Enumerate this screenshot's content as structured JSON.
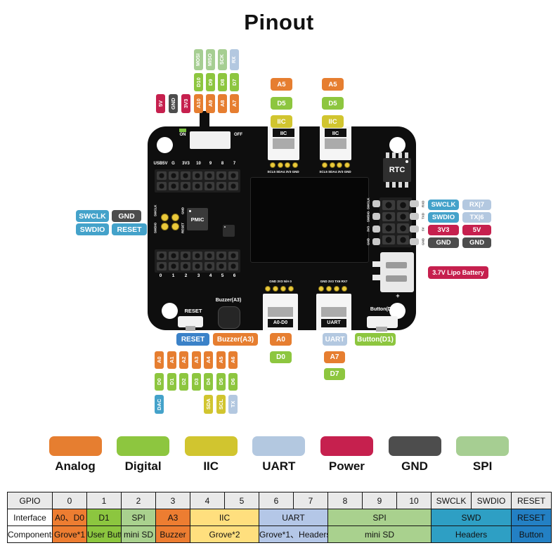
{
  "title": "Pinout",
  "colors": {
    "analog": "#E67E30",
    "digital": "#8DC63F",
    "iic": "#D1C52F",
    "uart": "#B3C8E0",
    "power": "#C6204E",
    "gnd": "#4D4D4D",
    "spi": "#A6CE92",
    "swd": "#44A2CA",
    "reset": "#3B82C8",
    "tbl_orange": "#ED7D31",
    "tbl_green": "#8CC63F",
    "tbl_lgreen": "#A9D18E",
    "tbl_yellow": "#FFDF7E",
    "tbl_blue": "#B4C7E7",
    "tbl_teal": "#2E9FC4",
    "tbl_reset": "#2380C4",
    "tbl_gray": "#E9E9E9"
  },
  "pins": {
    "top_spi_row": [
      {
        "t": "MOSI",
        "c": "spi"
      },
      {
        "t": "MISO",
        "c": "spi"
      },
      {
        "t": "SCK",
        "c": "spi"
      },
      {
        "t": "RX",
        "c": "uart"
      }
    ],
    "top_d_row": [
      {
        "t": "D10",
        "c": "digital"
      },
      {
        "t": "D9",
        "c": "digital"
      },
      {
        "t": "D8",
        "c": "digital"
      },
      {
        "t": "D7",
        "c": "digital"
      }
    ],
    "top_a_row": [
      {
        "t": "5V",
        "c": "power"
      },
      {
        "t": "GND",
        "c": "gnd"
      },
      {
        "t": "3V3",
        "c": "power"
      },
      {
        "t": "A10",
        "c": "analog"
      },
      {
        "t": "A9",
        "c": "analog"
      },
      {
        "t": "A8",
        "c": "analog"
      },
      {
        "t": "A7",
        "c": "analog"
      }
    ],
    "grove_iic_left": [
      {
        "t": "A5",
        "c": "analog"
      },
      {
        "t": "D5",
        "c": "digital"
      },
      {
        "t": "IIC",
        "c": "iic"
      }
    ],
    "grove_iic_right": [
      {
        "t": "A5",
        "c": "analog"
      },
      {
        "t": "D5",
        "c": "digital"
      },
      {
        "t": "IIC",
        "c": "iic"
      }
    ],
    "left_swd": [
      {
        "t": "SWCLK",
        "c": "swd"
      },
      {
        "t": "GND",
        "c": "gnd"
      },
      {
        "t": "SWDIO",
        "c": "swd"
      },
      {
        "t": "RESET",
        "c": "swd"
      }
    ],
    "right_inner": [
      {
        "t": "SWCLK",
        "c": "swd"
      },
      {
        "t": "SWDIO",
        "c": "swd"
      },
      {
        "t": "3V3",
        "c": "power"
      },
      {
        "t": "GND",
        "c": "gnd"
      }
    ],
    "right_outer": [
      {
        "t": "RX|7",
        "c": "uart"
      },
      {
        "t": "TX|6",
        "c": "uart"
      },
      {
        "t": "5V",
        "c": "power"
      },
      {
        "t": "GND",
        "c": "gnd"
      }
    ],
    "battery": [
      {
        "t": "3.7V Lipo Battery",
        "c": "power"
      }
    ],
    "bottom_row": [
      {
        "t": "RESET",
        "c": "reset"
      },
      {
        "t": "Buzzer(A3)",
        "c": "analog"
      },
      {
        "t": "A0",
        "c": "analog"
      },
      {
        "t": "UART",
        "c": "uart"
      },
      {
        "t": "Button(D1)",
        "c": "digital"
      }
    ],
    "below_a0": [
      {
        "t": "D0",
        "c": "digital"
      }
    ],
    "below_uart": [
      {
        "t": "A7",
        "c": "analog"
      },
      {
        "t": "D7",
        "c": "digital"
      }
    ],
    "bl_a": [
      {
        "t": "A0",
        "c": "analog"
      },
      {
        "t": "A1",
        "c": "analog"
      },
      {
        "t": "A2",
        "c": "analog"
      },
      {
        "t": "A3",
        "c": "analog"
      },
      {
        "t": "A4",
        "c": "analog"
      },
      {
        "t": "A5",
        "c": "analog"
      },
      {
        "t": "A6",
        "c": "analog"
      }
    ],
    "bl_d": [
      {
        "t": "D0",
        "c": "digital"
      },
      {
        "t": "D1",
        "c": "digital"
      },
      {
        "t": "D2",
        "c": "digital"
      },
      {
        "t": "D3",
        "c": "digital"
      },
      {
        "t": "D4",
        "c": "digital"
      },
      {
        "t": "D5",
        "c": "digital"
      },
      {
        "t": "D6",
        "c": "digital"
      }
    ],
    "bl_extra": [
      {
        "t": "DAC",
        "c": "swd"
      },
      {
        "t": "SDA",
        "c": "iic"
      },
      {
        "t": "SCL",
        "c": "iic"
      },
      {
        "t": "TX",
        "c": "uart"
      }
    ]
  },
  "board": {
    "on_label": "ON",
    "off_label": "OFF",
    "top_header_silk": [
      "USB5V",
      "G",
      "3V3",
      "10",
      "9",
      "8",
      "7"
    ],
    "bottom_header_silk": [
      "0",
      "1",
      "2",
      "3",
      "4",
      "5",
      "6"
    ],
    "pmic_label": "PMIC",
    "rtc_label": "RTC",
    "swd_pad_silk": [
      "SWCLK",
      "SWDIO",
      "GND",
      "RESET"
    ],
    "grove_iic_connector_label": "IIC",
    "grove_iic_silk": "SCL5 SDA4 3V3 GND",
    "grove_a0_connector_label": "A0-D0",
    "grove_a0_silk": "GND 3V3 N/A 0",
    "grove_uart_connector_label": "UART",
    "grove_uart_silk": "GND 3V3 TX6 RX7",
    "reset_silk": "RESET",
    "buzzer_silk": "Buzzer(A3)",
    "button_silk": "Button(D1)",
    "right_header_silk_left": [
      "SWCLK",
      "SWDIO",
      "3V3",
      "GND"
    ],
    "right_header_silk_right": [
      "RXD",
      "TXD",
      "5V",
      "GND"
    ],
    "battery_polarity": "+"
  },
  "legend": [
    {
      "label": "Analog",
      "color": "analog"
    },
    {
      "label": "Digital",
      "color": "digital"
    },
    {
      "label": "IIC",
      "color": "iic"
    },
    {
      "label": "UART",
      "color": "uart"
    },
    {
      "label": "Power",
      "color": "power"
    },
    {
      "label": "GND",
      "color": "gnd"
    },
    {
      "label": "SPI",
      "color": "spi"
    }
  ],
  "table": {
    "header": [
      "GPIO",
      "0",
      "1",
      "2",
      "3",
      "4",
      "5",
      "6",
      "7",
      "8",
      "9",
      "10",
      "SWCLK",
      "SWDIO",
      "RESET"
    ],
    "rows": [
      {
        "label": "Interface",
        "cells": [
          {
            "text": "A0、D0",
            "span": 1,
            "bg": "tbl_orange"
          },
          {
            "text": "D1",
            "span": 1,
            "bg": "tbl_green"
          },
          {
            "text": "SPI",
            "span": 1,
            "bg": "tbl_lgreen"
          },
          {
            "text": "A3",
            "span": 1,
            "bg": "tbl_orange"
          },
          {
            "text": "IIC",
            "span": 2,
            "bg": "tbl_yellow"
          },
          {
            "text": "UART",
            "span": 2,
            "bg": "tbl_blue"
          },
          {
            "text": "SPI",
            "span": 3,
            "bg": "tbl_lgreen"
          },
          {
            "text": "SWD",
            "span": 2,
            "bg": "tbl_teal"
          },
          {
            "text": "RESET",
            "span": 1,
            "bg": "tbl_reset"
          }
        ]
      },
      {
        "label": "Components",
        "cells": [
          {
            "text": "Grove*1",
            "span": 1,
            "bg": "tbl_orange"
          },
          {
            "text": "User Button",
            "span": 1,
            "bg": "tbl_green"
          },
          {
            "text": "mini SD",
            "span": 1,
            "bg": "tbl_lgreen"
          },
          {
            "text": "Buzzer",
            "span": 1,
            "bg": "tbl_orange"
          },
          {
            "text": "Grove*2",
            "span": 2,
            "bg": "tbl_yellow"
          },
          {
            "text": "Grove*1、Headers",
            "span": 2,
            "bg": "tbl_blue"
          },
          {
            "text": "mini SD",
            "span": 3,
            "bg": "tbl_lgreen"
          },
          {
            "text": "Headers",
            "span": 2,
            "bg": "tbl_teal"
          },
          {
            "text": "Button",
            "span": 1,
            "bg": "tbl_reset"
          }
        ]
      }
    ]
  }
}
